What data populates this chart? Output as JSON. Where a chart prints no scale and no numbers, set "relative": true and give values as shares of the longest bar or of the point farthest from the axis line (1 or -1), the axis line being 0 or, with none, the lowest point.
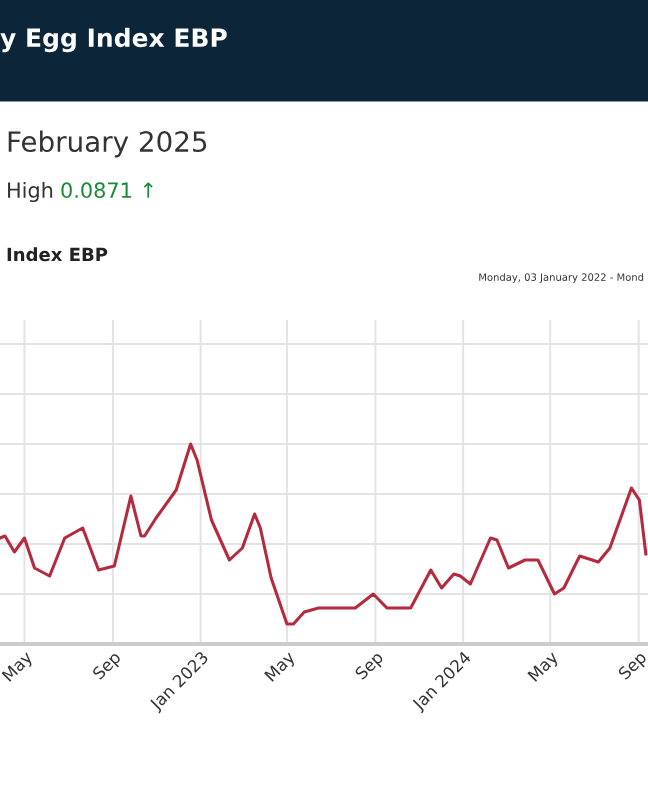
{
  "chart_data": {
    "type": "line",
    "title": "y Egg Index EBP",
    "subtitle": "February 2025",
    "annotations": [
      "High 0.0871 ↑",
      "Index EBP",
      "Monday, 03 January 2022 - Mond"
    ],
    "relative": true,
    "grid": true,
    "legend": false,
    "marker": "none",
    "line_style": "solid",
    "xlim": [
      "2022-03-28",
      "2024-09-14"
    ],
    "xticks": [
      {
        "value": "2022-05-01",
        "label": "May"
      },
      {
        "value": "2022-09-01",
        "label": "Sep"
      },
      {
        "value": "2023-01-01",
        "label": "Jan 2023"
      },
      {
        "value": "2023-05-01",
        "label": "May"
      },
      {
        "value": "2023-09-01",
        "label": "Sep"
      },
      {
        "value": "2024-01-01",
        "label": "Jan 2024"
      },
      {
        "value": "2024-05-01",
        "label": "May"
      },
      {
        "value": "2024-09-01",
        "label": "Sep"
      }
    ],
    "x": [
      "2022-03-28",
      "2022-04-04",
      "2022-04-17",
      "2022-05-01",
      "2022-05-15",
      "2022-06-05",
      "2022-06-26",
      "2022-07-21",
      "2022-08-12",
      "2022-09-03",
      "2022-09-26",
      "2022-10-10",
      "2022-10-15",
      "2022-10-31",
      "2022-11-28",
      "2022-12-18",
      "2022-12-27",
      "2023-01-16",
      "2023-02-10",
      "2023-02-28",
      "2023-03-17",
      "2023-03-25",
      "2023-04-09",
      "2023-05-01",
      "2023-05-10",
      "2023-05-25",
      "2023-06-14",
      "2023-08-04",
      "2023-08-29",
      "2023-09-17",
      "2023-10-20",
      "2023-11-17",
      "2023-12-02",
      "2023-12-19",
      "2023-12-28",
      "2024-01-11",
      "2024-02-08",
      "2024-02-17",
      "2024-03-04",
      "2024-03-27",
      "2024-04-14",
      "2024-05-07",
      "2024-05-20",
      "2024-06-11",
      "2024-07-07",
      "2024-07-23",
      "2024-08-22",
      "2024-09-02",
      "2024-09-11"
    ],
    "series": [
      {
        "color": "#b52a3c",
        "values": [
          0.53,
          0.54,
          0.46,
          0.53,
          0.38,
          0.34,
          0.53,
          0.58,
          0.37,
          0.39,
          0.74,
          0.54,
          0.54,
          0.63,
          0.77,
          1,
          0.92,
          0.62,
          0.42,
          0.48,
          0.65,
          0.58,
          0.33,
          0.1,
          0.1,
          0.16,
          0.18,
          0.18,
          0.25,
          0.18,
          0.18,
          0.37,
          0.28,
          0.35,
          0.34,
          0.3,
          0.53,
          0.52,
          0.38,
          0.42,
          0.42,
          0.25,
          0.28,
          0.44,
          0.41,
          0.48,
          0.78,
          0.72,
          0.45
        ]
      }
    ]
  }
}
